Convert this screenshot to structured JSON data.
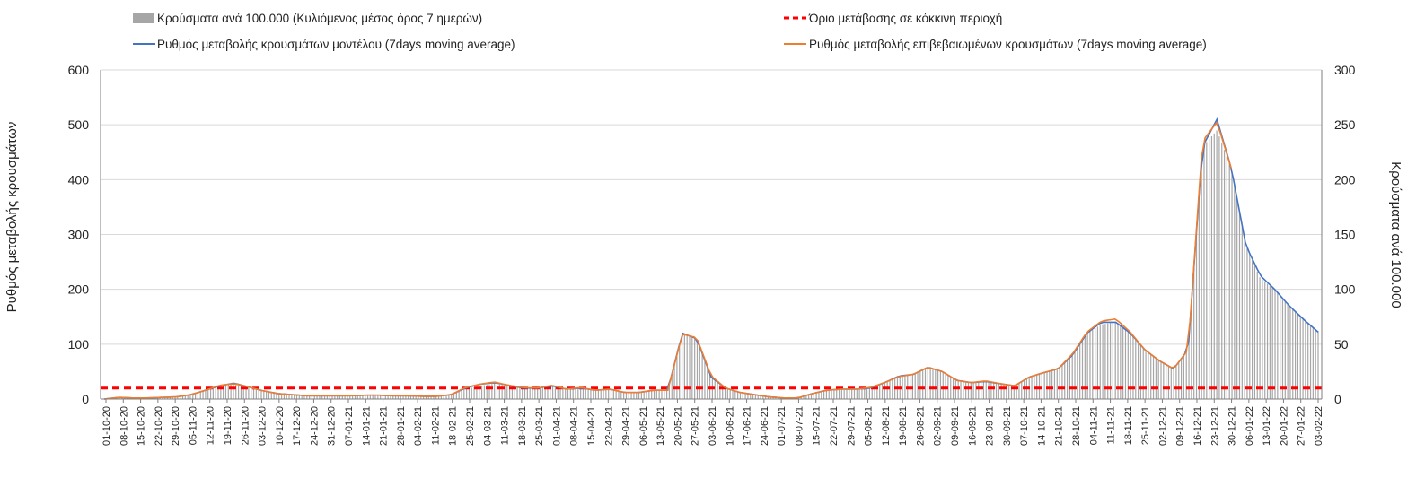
{
  "chart_data": {
    "type": "bar",
    "legend": [
      {
        "label": "Κρούσματα ανά 100.000 (Κυλιόμενος μέσος όρος 7 ημερών)",
        "kind": "bar",
        "color": "#a6a6a6"
      },
      {
        "label": "Όριο μετάβασης σε κόκκινη περιοχή",
        "kind": "dashed",
        "color": "#ff0000"
      },
      {
        "label": "Ρυθμός μεταβολής κρουσμάτων μοντέλου (7days moving average)",
        "kind": "line",
        "color": "#4472c4"
      },
      {
        "label": "Ρυθμός μεταβολής επιβεβαιωμένων κρουσμάτων (7days moving average)",
        "kind": "line",
        "color": "#ed7d31"
      }
    ],
    "legend_placement": "top",
    "ylabel_left": "Ρυθμός μεταβολής κρουσμάτων",
    "ylabel_right": "Κρούσματα ανά 100.000",
    "ylim_left": [
      0,
      600
    ],
    "ylim_right": [
      0,
      300
    ],
    "yticks_left": [
      "0",
      "100",
      "200",
      "300",
      "400",
      "500",
      "600"
    ],
    "yticks_right": [
      "0",
      "50",
      "100",
      "150",
      "200",
      "250",
      "300"
    ],
    "grid": true,
    "x_tick_labels": [
      "01-10-20",
      "08-10-20",
      "15-10-20",
      "22-10-20",
      "29-10-20",
      "05-11-20",
      "12-11-20",
      "19-11-20",
      "26-11-20",
      "03-12-20",
      "10-12-20",
      "17-12-20",
      "24-12-20",
      "31-12-20",
      "07-01-21",
      "14-01-21",
      "21-01-21",
      "28-01-21",
      "04-02-21",
      "11-02-21",
      "18-02-21",
      "25-02-21",
      "04-03-21",
      "11-03-21",
      "18-03-21",
      "25-03-21",
      "01-04-21",
      "08-04-21",
      "15-04-21",
      "22-04-21",
      "29-04-21",
      "06-05-21",
      "13-05-21",
      "20-05-21",
      "27-05-21",
      "03-06-21",
      "10-06-21",
      "17-06-21",
      "24-06-21",
      "01-07-21",
      "08-07-21",
      "15-07-21",
      "22-07-21",
      "29-07-21",
      "05-08-21",
      "12-08-21",
      "19-08-21",
      "26-08-21",
      "02-09-21",
      "09-09-21",
      "16-09-21",
      "23-09-21",
      "30-09-21",
      "07-10-21",
      "14-10-21",
      "21-10-21",
      "28-10-21",
      "04-11-21",
      "11-11-21",
      "18-11-21",
      "25-11-21",
      "02-12-21",
      "09-12-21",
      "16-12-21",
      "23-12-21",
      "30-12-21",
      "06-01-22",
      "13-01-22",
      "20-01-22",
      "27-01-22",
      "03-02-22"
    ],
    "red_threshold_right": 10,
    "series": [
      {
        "name": "Κρούσματα ανά 100.000 (Κυλιόμενος μέσος όρος 7 ημερών)",
        "axis": "right",
        "values": [
          0.5,
          1,
          1,
          1,
          1.5,
          2,
          4,
          8,
          12,
          14,
          11,
          8,
          5,
          4,
          3,
          3,
          3,
          3,
          4,
          4,
          4,
          3,
          2.5,
          2.5,
          4,
          9,
          12,
          14,
          12,
          10,
          10,
          12,
          9,
          10,
          8,
          9,
          6,
          6,
          8,
          8,
          60,
          55,
          20,
          10,
          6,
          4,
          2,
          1,
          1,
          5,
          8,
          9,
          9,
          10,
          15,
          20,
          23,
          29,
          25,
          17,
          15,
          16,
          14,
          12,
          20,
          24,
          28,
          40,
          60,
          68,
          70,
          60,
          45,
          35,
          27,
          45,
          230,
          245,
          210,
          140,
          110,
          100,
          85,
          72,
          62
        ]
      },
      {
        "name": "Ρυθμός μεταβολής κρουσμάτων μοντέλου (7days moving average)",
        "axis": "left",
        "values": [
          0,
          3,
          2,
          2,
          3,
          4,
          8,
          16,
          24,
          29,
          22,
          15,
          10,
          8,
          6,
          6,
          6,
          6,
          7,
          7,
          6,
          6,
          5,
          5,
          8,
          20,
          27,
          30,
          25,
          20,
          20,
          24,
          18,
          20,
          16,
          18,
          12,
          12,
          16,
          16,
          120,
          110,
          40,
          20,
          12,
          8,
          4,
          2,
          2,
          10,
          16,
          18,
          18,
          20,
          30,
          42,
          45,
          58,
          50,
          34,
          30,
          32,
          28,
          24,
          40,
          48,
          55,
          80,
          120,
          140,
          140,
          120,
          90,
          70,
          55,
          90,
          460,
          510,
          420,
          280,
          225,
          200,
          170,
          145,
          122
        ]
      },
      {
        "name": "Ρυθμός μεταβολής επιβεβαιωμένων κρουσμάτων (7days moving average)",
        "axis": "left",
        "values": [
          0,
          3,
          2,
          2,
          3,
          4,
          8,
          16,
          25,
          28,
          22,
          15,
          10,
          8,
          6,
          6,
          6,
          6,
          7,
          7,
          6,
          6,
          5,
          5,
          8,
          21,
          27,
          31,
          25,
          21,
          20,
          25,
          18,
          21,
          16,
          18,
          12,
          12,
          16,
          16,
          118,
          112,
          42,
          20,
          12,
          8,
          4,
          2,
          2,
          10,
          16,
          18,
          18,
          21,
          30,
          41,
          45,
          58,
          50,
          34,
          30,
          33,
          28,
          24,
          40,
          48,
          55,
          82,
          122,
          142,
          146,
          122,
          90,
          70,
          55,
          90,
          470,
          505,
          420
        ]
      }
    ]
  }
}
